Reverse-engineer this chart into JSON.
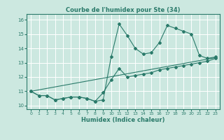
{
  "title": "Courbe de l'humidex pour Ste (34)",
  "xlabel": "Humidex (Indice chaleur)",
  "bg_color": "#cce8e0",
  "grid_color": "#ffffff",
  "line_color": "#2a7a6a",
  "xlim": [
    -0.5,
    23.5
  ],
  "ylim": [
    9.75,
    16.4
  ],
  "xticks": [
    0,
    1,
    2,
    3,
    4,
    5,
    6,
    7,
    8,
    9,
    10,
    11,
    12,
    13,
    14,
    15,
    16,
    17,
    18,
    19,
    20,
    21,
    22,
    23
  ],
  "yticks": [
    10,
    11,
    12,
    13,
    14,
    15,
    16
  ],
  "line1_x": [
    0,
    1,
    2,
    3,
    4,
    5,
    6,
    7,
    8,
    9,
    10,
    11,
    12,
    13,
    14,
    15,
    16,
    17,
    18,
    19,
    20,
    21,
    22,
    23
  ],
  "line1_y": [
    11.0,
    10.7,
    10.7,
    10.4,
    10.5,
    10.6,
    10.6,
    10.5,
    10.3,
    10.4,
    13.4,
    15.7,
    14.9,
    14.0,
    13.6,
    13.7,
    14.4,
    15.6,
    15.4,
    15.2,
    15.0,
    13.5,
    13.3,
    13.4
  ],
  "line2_x": [
    0,
    1,
    2,
    3,
    4,
    5,
    6,
    7,
    8,
    9,
    10,
    11,
    12,
    13,
    14,
    15,
    16,
    17,
    18,
    19,
    20,
    21,
    22,
    23
  ],
  "line2_y": [
    11.0,
    10.7,
    10.7,
    10.4,
    10.5,
    10.6,
    10.6,
    10.5,
    10.3,
    10.9,
    11.8,
    12.6,
    12.0,
    12.1,
    12.2,
    12.3,
    12.5,
    12.6,
    12.7,
    12.8,
    12.9,
    13.0,
    13.1,
    13.3
  ],
  "line3_x": [
    0,
    23
  ],
  "line3_y": [
    11.0,
    13.35
  ]
}
